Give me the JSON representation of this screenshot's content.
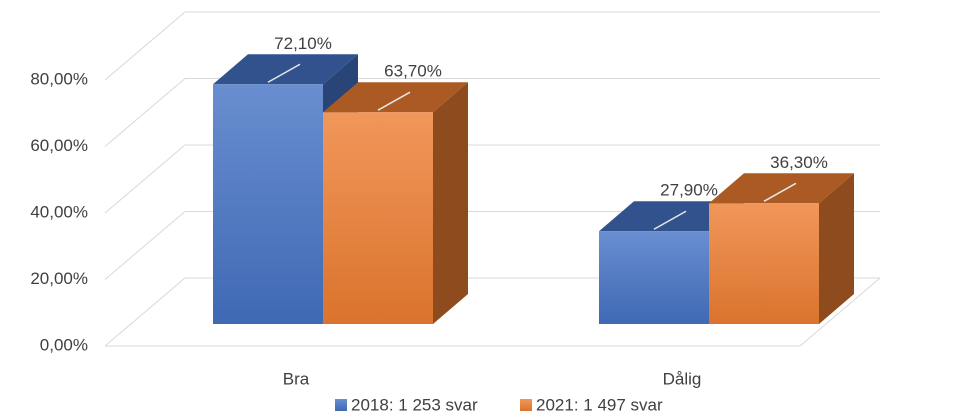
{
  "chart_data": {
    "type": "bar3d",
    "categories": [
      "Bra",
      "Dålig"
    ],
    "series": [
      {
        "name": "2018: 1 253 svar",
        "color": "#4472c4",
        "values": [
          72.1,
          27.9
        ],
        "value_labels": [
          "72,10%",
          "27,90%"
        ]
      },
      {
        "name": "2021: 1 497 svar",
        "color": "#ed7d31",
        "values": [
          63.7,
          36.3
        ],
        "value_labels": [
          "63,70%",
          "36,30%"
        ]
      }
    ],
    "ylim": [
      0,
      80
    ],
    "yticks": [
      {
        "value": 0,
        "label": "0,00%"
      },
      {
        "value": 20,
        "label": "20,00%"
      },
      {
        "value": 40,
        "label": "40,00%"
      },
      {
        "value": 60,
        "label": "60,00%"
      },
      {
        "value": 80,
        "label": "80,00%"
      }
    ],
    "grid": true,
    "legend": "bottom"
  }
}
